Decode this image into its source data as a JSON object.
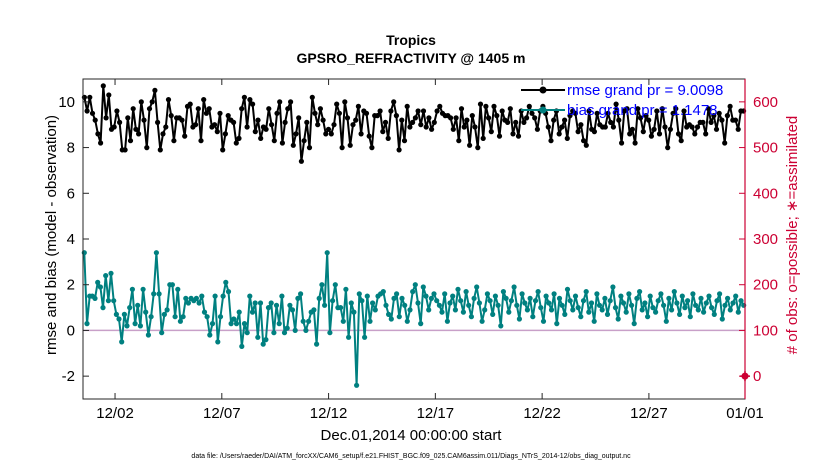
{
  "chart_data": {
    "type": "line",
    "title": "Tropics",
    "subtitle": "GPSRO_REFRACTIVITY @ 1405 m",
    "xlabel": "Dec.01,2014 00:00:00 start",
    "ylabel_left": "rmse and bias (model - observation)",
    "ylabel_right": "# of obs: o=possible; ∗=assimilated",
    "footer": "data file: /Users/raeder/DAI/ATM_forcXX/CAM6_setup/f.e21.FHIST_BGC.f09_025.CAM6assim.011/Diags_NTrS_2014-12/obs_diag_output.nc",
    "xlim": [
      0,
      31
    ],
    "ylim_left": [
      -3,
      11
    ],
    "ylim_right": [
      -50,
      650
    ],
    "x_ticks": [
      1.5,
      6.5,
      11.5,
      16.5,
      21.5,
      26.5,
      31
    ],
    "x_tick_labels": [
      "12/02",
      "12/07",
      "12/12",
      "12/17",
      "12/22",
      "12/27",
      "01/01"
    ],
    "y_ticks_left": [
      "-2",
      "0",
      "2",
      "4",
      "6",
      "8",
      "10"
    ],
    "y_ticks_right": [
      "0",
      "100",
      "200",
      "300",
      "400",
      "500",
      "600"
    ],
    "zero_line": 0,
    "series": [
      {
        "name": "rmse",
        "legend": "rmse grand pr = 9.0098",
        "color": "#000000",
        "values": [
          10.2,
          9.6,
          10.2,
          9.5,
          9.2,
          8.6,
          8.2,
          10.7,
          9.3,
          10.3,
          8.8,
          8.9,
          9.6,
          9.1,
          7.9,
          7.9,
          9.3,
          8.3,
          9.7,
          8.8,
          8.6,
          10.0,
          9.2,
          8.0,
          9.7,
          10.0,
          10.5,
          9.1,
          7.9,
          8.6,
          8.9,
          10.1,
          9.4,
          8.3,
          9.3,
          9.3,
          9.2,
          8.5,
          9.8,
          9.9,
          8.9,
          9.0,
          9.7,
          8.3,
          10.1,
          9.5,
          9.7,
          8.9,
          9.0,
          8.7,
          9.5,
          7.9,
          8.6,
          9.4,
          9.2,
          9.1,
          8.2,
          8.4,
          9.7,
          10.2,
          8.9,
          10.1,
          9.9,
          8.7,
          9.2,
          8.4,
          8.9,
          8.8,
          9.7,
          9.0,
          8.3,
          9.5,
          10.0,
          8.2,
          9.1,
          9.7,
          10.0,
          8.1,
          8.6,
          9.3,
          7.4,
          8.3,
          9.1,
          8.0,
          10.2,
          9.5,
          9.0,
          9.7,
          9.2,
          8.6,
          8.8,
          8.6,
          9.0,
          9.9,
          9.5,
          8.0,
          10.0,
          9.3,
          8.1,
          9.0,
          9.2,
          9.8,
          8.6,
          9.6,
          9.5,
          8.5,
          8.0,
          9.4,
          9.4,
          9.6,
          8.7,
          9.1,
          8.4,
          9.6,
          10.0,
          9.4,
          7.9,
          9.2,
          8.3,
          9.8,
          8.9,
          9.1,
          9.3,
          9.6,
          9.0,
          9.6,
          8.9,
          9.3,
          8.8,
          9.1,
          9.6,
          9.8,
          9.5,
          9.4,
          9.4,
          9.3,
          8.8,
          9.3,
          8.3,
          9.7,
          8.9,
          9.2,
          8.1,
          9.4,
          8.9,
          8.0,
          9.9,
          8.4,
          9.8,
          9.3,
          8.7,
          9.8,
          9.4,
          8.5,
          9.6,
          9.2,
          9.1,
          9.7,
          8.6,
          9.1,
          8.5,
          9.6,
          9.1,
          9.3,
          9.8,
          9.5,
          9.3,
          8.8,
          9.6,
          9.8,
          9.5,
          8.9,
          8.3,
          9.2,
          9.6,
          8.6,
          8.9,
          9.2,
          8.4,
          9.4,
          9.6,
          9.5,
          8.7,
          9.0,
          8.3,
          8.1,
          9.6,
          8.8,
          8.7,
          9.5,
          9.0,
          8.9,
          8.9,
          9.5,
          9.1,
          8.9,
          9.9,
          9.2,
          8.2,
          9.6,
          9.7,
          8.6,
          8.8,
          8.2,
          9.7,
          9.3,
          8.7,
          9.4,
          9.2,
          8.5,
          8.8,
          9.6,
          8.6,
          9.7,
          8.9,
          8.0,
          8.8,
          9.5,
          9.7,
          8.6,
          8.3,
          9.6,
          8.9,
          9.0,
          8.9,
          8.6,
          8.9,
          9.1,
          9.1,
          8.6,
          9.7,
          9.1,
          9.4,
          8.8,
          9.5,
          9.2,
          8.2,
          9.4,
          9.8,
          9.2,
          9.2,
          8.8,
          9.6,
          9.6
        ]
      },
      {
        "name": "bias",
        "legend": "bias grand pr = 1.1478",
        "color": "#008080",
        "values": [
          3.4,
          0.3,
          1.5,
          1.5,
          1.4,
          2.1,
          1.9,
          1.0,
          2.4,
          1.3,
          2.5,
          1.3,
          0.7,
          0.5,
          -0.5,
          0.7,
          0.2,
          1.0,
          1.8,
          0.3,
          1.1,
          0.2,
          1.8,
          0.8,
          -0.2,
          0.6,
          1.6,
          3.4,
          1.6,
          -0.1,
          0.7,
          0.9,
          2.0,
          2.0,
          0.6,
          1.8,
          0.4,
          0.6,
          1.4,
          1.2,
          1.4,
          1.3,
          1.4,
          1.2,
          1.5,
          0.8,
          0.6,
          -0.2,
          0.3,
          1.5,
          -0.5,
          0.6,
          1.5,
          2.1,
          1.7,
          0.3,
          0.5,
          0.3,
          0.8,
          -0.7,
          0.3,
          -0.1,
          1.5,
          0.8,
          1.2,
          -0.3,
          1.2,
          -0.6,
          -0.4,
          1.0,
          1.2,
          -0.1,
          1.1,
          0.3,
          1.5,
          -0.1,
          0.1,
          1.1,
          0.9,
          0.0,
          1.4,
          1.6,
          0.4,
          0.0,
          0.4,
          0.8,
          0.9,
          -0.6,
          1.4,
          2.0,
          1.1,
          3.4,
          -0.1,
          1.3,
          2.0,
          1.0,
          1.0,
          0.4,
          1.8,
          -0.3,
          1.2,
          0.8,
          -2.4,
          1.6,
          1.3,
          -0.3,
          1.5,
          0.4,
          1.2,
          0.9,
          1.5,
          1.6,
          1.7,
          1.1,
          0.7,
          0.5,
          1.4,
          1.6,
          0.6,
          1.4,
          1.1,
          0.4,
          0.9,
          1.7,
          2.0,
          1.2,
          0.3,
          1.9,
          1.5,
          0.9,
          1.4,
          1.6,
          1.3,
          1.1,
          0.8,
          1.6,
          0.4,
          1.2,
          1.5,
          0.9,
          1.8,
          1.3,
          0.8,
          1.7,
          1.1,
          0.6,
          1.4,
          1.9,
          1.2,
          0.4,
          0.9,
          1.6,
          1.3,
          0.7,
          1.5,
          1.1,
          0.2,
          1.7,
          1.4,
          0.8,
          1.3,
          1.9,
          1.1,
          0.5,
          1.6,
          1.2,
          0.9,
          1.4,
          0.6,
          1.3,
          1.7,
          1.0,
          0.4,
          1.5,
          1.2,
          0.9,
          1.6,
          0.3,
          1.4,
          1.1,
          0.7,
          1.8,
          1.3,
          0.9,
          1.5,
          1.0,
          0.6,
          1.3,
          1.7,
          0.8,
          1.2,
          0.4,
          1.6,
          1.1,
          0.9,
          1.4,
          0.7,
          1.3,
          1.9,
          1.0,
          0.5,
          1.5,
          1.2,
          0.8,
          1.6,
          1.1,
          0.3,
          1.4,
          1.7,
          0.9,
          1.2,
          0.6,
          1.5,
          1.0,
          0.8,
          1.3,
          1.6,
          1.1,
          0.4,
          1.4,
          0.9,
          1.7,
          1.2,
          0.7,
          1.5,
          1.0,
          1.3,
          0.6,
          1.6,
          1.1,
          0.9,
          1.4,
          0.8,
          1.2,
          1.5,
          1.0,
          0.7,
          1.3,
          1.6,
          0.5,
          1.1,
          1.4,
          0.9,
          1.2,
          1.5,
          0.8,
          1.3,
          1.1
        ]
      }
    ]
  }
}
